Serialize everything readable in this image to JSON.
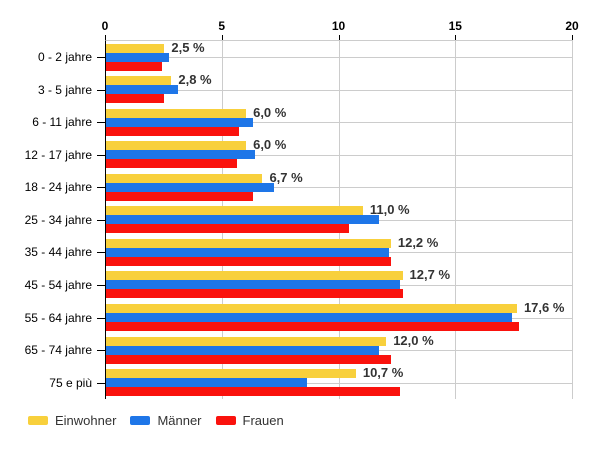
{
  "chart_data": {
    "type": "bar",
    "orientation": "horizontal",
    "title": "",
    "xlabel": "",
    "ylabel": "",
    "xlim": [
      0,
      20
    ],
    "x_ticks": [
      "0",
      "5",
      "10",
      "15",
      "20"
    ],
    "grid": true,
    "legend_position": "bottom",
    "categories": [
      "0 - 2 jahre",
      "3 - 5 jahre",
      "6 - 11 jahre",
      "12 - 17 jahre",
      "18 - 24 jahre",
      "25 - 34 jahre",
      "35 - 44 jahre",
      "45 - 54 jahre",
      "55 - 64 jahre",
      "65 - 74 jahre",
      "75 e più"
    ],
    "series": [
      {
        "name": "Einwohner",
        "color": "#F8D03C",
        "values": [
          2.5,
          2.8,
          6.0,
          6.0,
          6.7,
          11.0,
          12.2,
          12.7,
          17.6,
          12.0,
          10.7
        ]
      },
      {
        "name": "Männer",
        "color": "#1E76E8",
        "values": [
          2.7,
          3.1,
          6.3,
          6.4,
          7.2,
          11.7,
          12.1,
          12.6,
          17.4,
          11.7,
          8.6
        ]
      },
      {
        "name": "Frauen",
        "color": "#FA120D",
        "values": [
          2.4,
          2.5,
          5.7,
          5.6,
          6.3,
          10.4,
          12.2,
          12.7,
          17.7,
          12.2,
          12.6
        ]
      }
    ],
    "bar_labels": [
      "2,5 %",
      "2,8 %",
      "6,0 %",
      "6,0 %",
      "6,7 %",
      "11,0 %",
      "12,2 %",
      "12,7 %",
      "17,6 %",
      "12,0 %",
      "10,7 %"
    ],
    "colors": {
      "gridline": "#cccccc",
      "axis": "#000000",
      "label": "#333333"
    }
  }
}
